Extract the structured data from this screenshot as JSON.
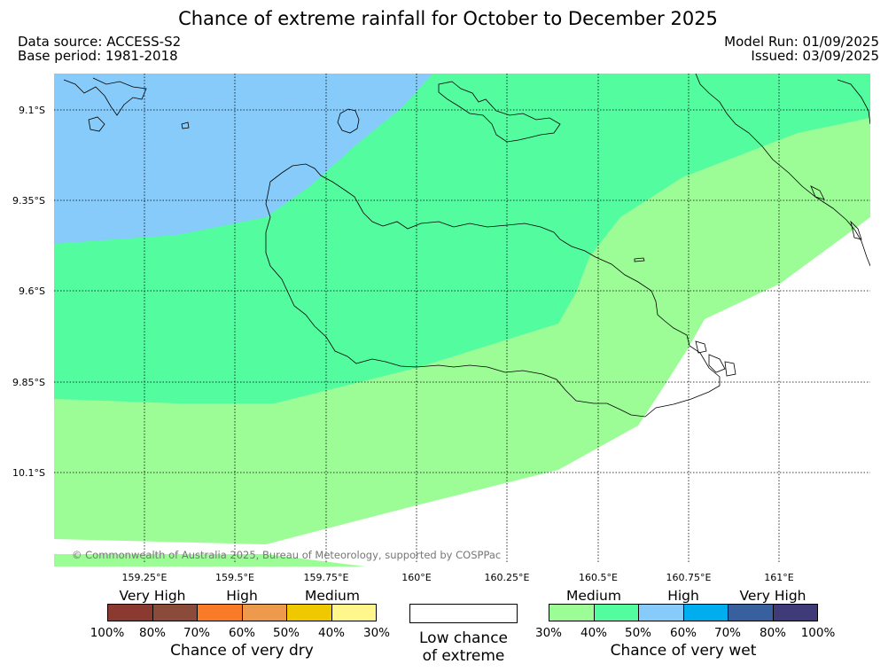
{
  "header": {
    "title": "Chance of extreme rainfall for October to December 2025",
    "data_source": "Data source: ACCESS-S2",
    "base_period": "Base period: 1981-2018",
    "model_run": "Model Run: 01/09/2025",
    "issued": "Issued: 03/09/2025"
  },
  "map": {
    "latitude_labels": [
      "9.1°S",
      "9.35°S",
      "9.6°S",
      "9.85°S",
      "10.1°S"
    ],
    "longitude_labels": [
      "159.25°E",
      "159.5°E",
      "159.75°E",
      "160°E",
      "160.25°E",
      "160.5°E",
      "160.75°E",
      "161°E"
    ],
    "copyright": "© Commonwealth of Australia 2025, Bureau of Meteorology, supported by COSPPac",
    "zones": [
      {
        "name": "very-wet-50-60",
        "color": "#87cbfa"
      },
      {
        "name": "very-wet-40-50",
        "color": "#54fca0"
      },
      {
        "name": "very-wet-30-40",
        "color": "#9cfc96"
      },
      {
        "name": "low-chance",
        "color": "#ffffff"
      }
    ]
  },
  "dry_legend": {
    "headings": [
      "Very High",
      "High",
      "Medium"
    ],
    "colors": [
      "#8b3a32",
      "#8b4b3b",
      "#fa7b27",
      "#ee9a4d",
      "#f0c800",
      "#fff68c"
    ],
    "ticks": [
      "100%",
      "80%",
      "70%",
      "60%",
      "50%",
      "40%",
      "30%"
    ],
    "name": "Chance of very dry"
  },
  "low_legend": {
    "line1": "Low chance",
    "line2": "of extreme"
  },
  "wet_legend": {
    "headings": [
      "Medium",
      "High",
      "Very High"
    ],
    "colors": [
      "#9cfc96",
      "#54fca0",
      "#87cbfa",
      "#00aeef",
      "#38609f",
      "#3e3b78"
    ],
    "ticks": [
      "30%",
      "40%",
      "50%",
      "60%",
      "70%",
      "80%",
      "100%"
    ],
    "name": "Chance of very wet"
  }
}
